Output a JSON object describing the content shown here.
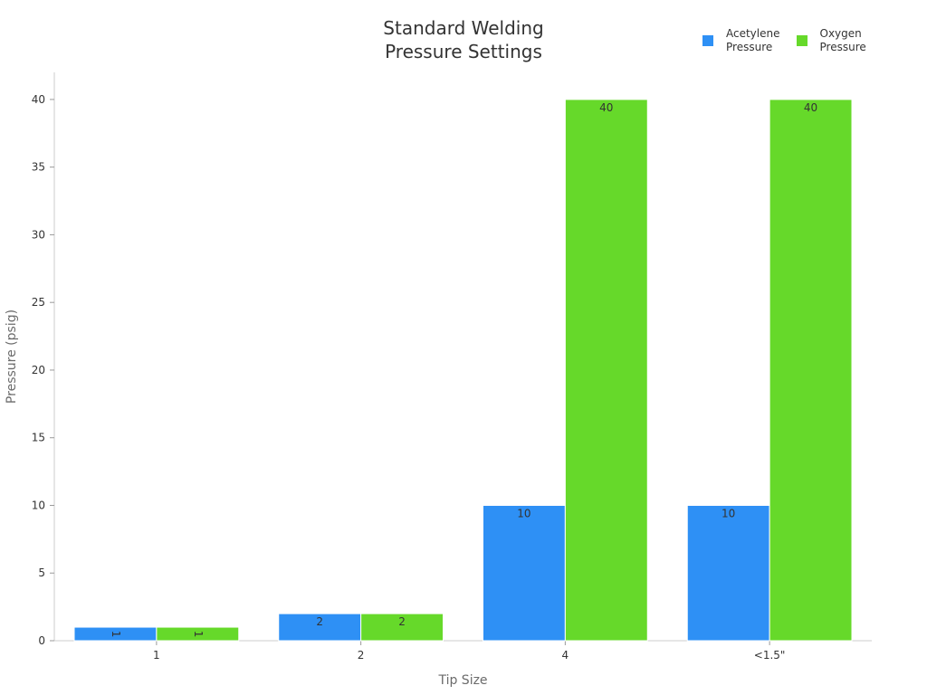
{
  "chart_data": {
    "type": "bar",
    "title_lines": [
      "Standard Welding",
      "Pressure Settings"
    ],
    "xlabel": "Tip Size",
    "ylabel": "Pressure (psig)",
    "categories": [
      "1",
      "2",
      "4",
      "<1.5\""
    ],
    "series": [
      {
        "name_lines": [
          "Acetylene",
          "Pressure"
        ],
        "color": "#2e90f5",
        "values": [
          1,
          2,
          10,
          10
        ]
      },
      {
        "name_lines": [
          "Oxygen",
          "Pressure"
        ],
        "color": "#66d92a",
        "values": [
          1,
          2,
          40,
          40
        ]
      }
    ],
    "ylim": [
      0,
      42
    ],
    "yticks": [
      0,
      5,
      10,
      15,
      20,
      25,
      30,
      35,
      40
    ],
    "grid": false,
    "legend_position": "top-right",
    "data_labels": true
  }
}
